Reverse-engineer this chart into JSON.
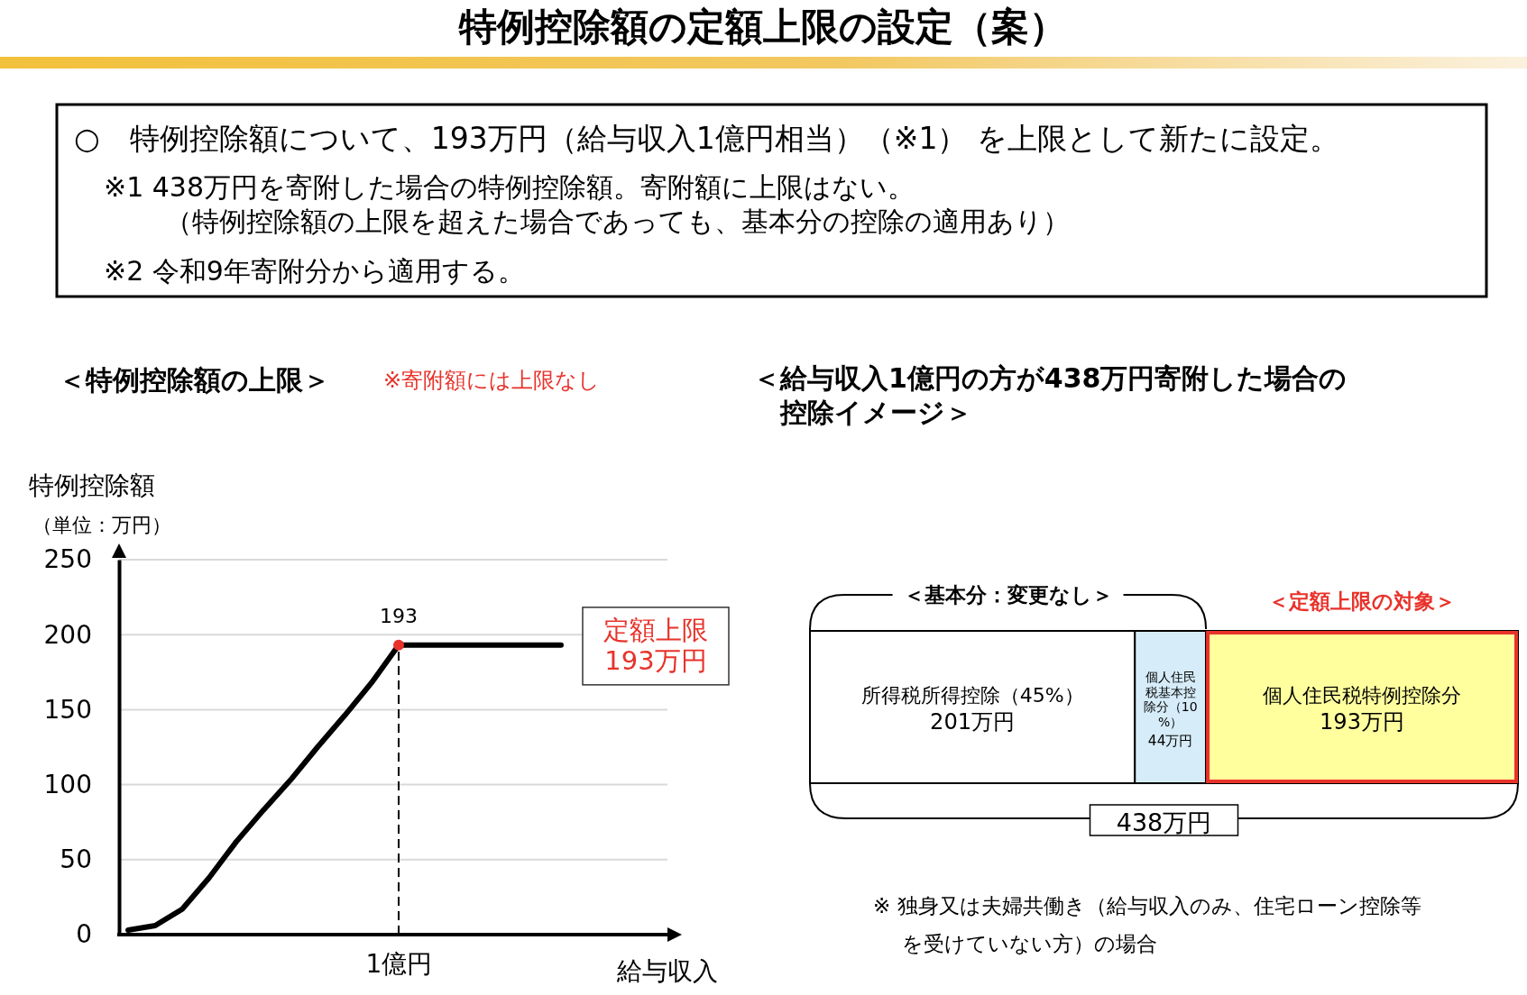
{
  "chart_data": [
    {
      "type": "line",
      "title": "＜特例控除額の上限＞",
      "subtitle": "※寄附額には上限なし",
      "xlabel": "給与収入",
      "ylabel": "特例控除額（単位：万円）",
      "categories": [
        null,
        null,
        null,
        null,
        null,
        null,
        null,
        null,
        null,
        null,
        "1億円",
        null,
        null,
        null,
        null,
        null,
        null
      ],
      "series": [
        {
          "color": "#000000",
          "values": [
            3,
            6,
            17,
            38,
            62,
            83,
            103,
            125,
            146,
            168,
            193,
            193,
            193,
            193,
            193,
            193,
            193
          ]
        }
      ],
      "ylim": [
        0,
        250
      ],
      "yticks": [
        0,
        50,
        100,
        150,
        200,
        250
      ],
      "grid": "y",
      "ref_lines": [
        {
          "axis": "x",
          "value": "1億円",
          "color": "#000000",
          "line_style": "dashed"
        }
      ],
      "annotations": [
        "特例控除額の定額上限の設定（案）",
        "○　特例控除額について、193万円（給与収入1億円相当）（※1） を上限として新たに設定。",
        "※1  438万円を寄附した場合の特例控除額。寄附額に上限はない。",
        "（特例控除額の上限を超えた場合であっても、基本分の控除の適用あり）",
        "※2  令和9年寄附分から適用する。",
        {
          "text": "193",
          "x": "1億円",
          "y": 193
        },
        "定額上限\n193万円"
      ]
    },
    {
      "type": "bar",
      "orientation": "horizontal",
      "stacked": true,
      "title": "＜給与収入1億円の方が438万円寄附した場合の控除イメージ＞",
      "categories": [
        null
      ],
      "series": [
        {
          "name": "所得税所得控除（45%）",
          "color": "#ffffff",
          "values": [
            201
          ],
          "value_labels": [
            "201万円"
          ]
        },
        {
          "name": "個人住民税基本控除分（10%）",
          "color": "#d6ecf8",
          "values": [
            44
          ],
          "value_labels": [
            "44万円"
          ]
        },
        {
          "name": "個人住民税特例控除分",
          "color": "#ffff9e",
          "values": [
            193
          ],
          "value_labels": [
            "193万円"
          ]
        }
      ],
      "xlim": [
        0,
        438
      ],
      "tick_labels": false,
      "legend": false,
      "totals": [
        "438万円"
      ],
      "annotations": [
        "＜基本分：変更なし＞",
        "＜定額上限の対象＞",
        "※  独身又は夫婦共働き（給与収入のみ、住宅ローン控除等を受けていない方）の場合"
      ]
    }
  ]
}
